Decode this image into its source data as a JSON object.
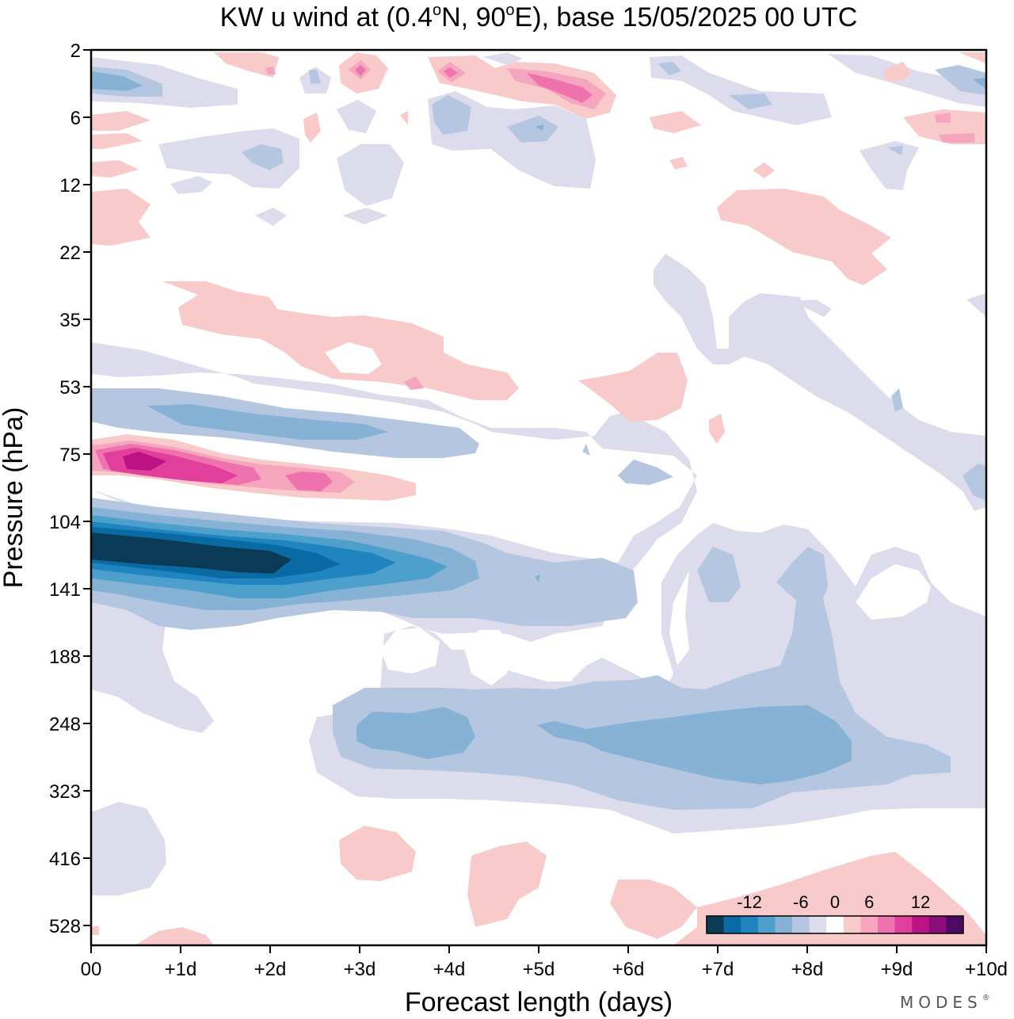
{
  "chart_data": {
    "type": "heatmap",
    "title": "KW u wind at (0.4°N, 90°E),  base 15/05/2025  00 UTC",
    "title_parts": {
      "prefix": "KW u wind at (0.4",
      "deg1": "o",
      "mid": "N, 90",
      "deg2": "o",
      "suffix": "E),  base 15/05/2025  00 UTC"
    },
    "xlabel": "Forecast length (days)",
    "ylabel": "Pressure (hPa)",
    "x_ticks": [
      "00",
      "+1d",
      "+2d",
      "+3d",
      "+4d",
      "+5d",
      "+6d",
      "+7d",
      "+8d",
      "+9d",
      "+10d"
    ],
    "xlim": [
      0,
      10
    ],
    "y_ticks": [
      "2",
      "6",
      "12",
      "22",
      "35",
      "53",
      "75",
      "104",
      "141",
      "188",
      "248",
      "323",
      "416",
      "528"
    ],
    "y_scale": "non-linear (model levels, top to bottom)",
    "colorbar": {
      "placement": "bottom-right",
      "tick_labels": [
        "-12",
        "-6",
        "0",
        "6",
        "12"
      ],
      "tick_values": [
        -12,
        -6,
        0,
        6,
        12
      ],
      "bounds": [
        -16,
        -14,
        -12,
        -10,
        -8,
        -6,
        -4,
        -2,
        2,
        4,
        6,
        8,
        10,
        12,
        14,
        16
      ],
      "colors": [
        "#0a3a55",
        "#0a6aa3",
        "#1f84bf",
        "#4ea0cc",
        "#86b2d6",
        "#b5c6e0",
        "#dcdced",
        "#ffffff",
        "#f9caca",
        "#f6a5bf",
        "#ee72ad",
        "#e23e9c",
        "#bc1286",
        "#8a0d7a",
        "#4e0a62"
      ]
    },
    "features": [
      {
        "name": "stratospheric easterly core",
        "day_range": [
          0,
          3.5
        ],
        "pressure_range_hPa": [
          104,
          141
        ],
        "min_value": -16
      },
      {
        "name": "westerly band",
        "day_range": [
          0,
          3.6
        ],
        "pressure_hPa": 80,
        "max_value": 13
      },
      {
        "name": "easterly band",
        "day_range": [
          0,
          4.3
        ],
        "pressure_hPa": 60,
        "min_value": -6
      },
      {
        "name": "upper-tropospheric easterlies",
        "day_range": [
          2.8,
          9.5
        ],
        "pressure_hPa": 260,
        "min_value": -6
      }
    ]
  },
  "branding": {
    "logo_text": "MODES",
    "mark": "®"
  }
}
